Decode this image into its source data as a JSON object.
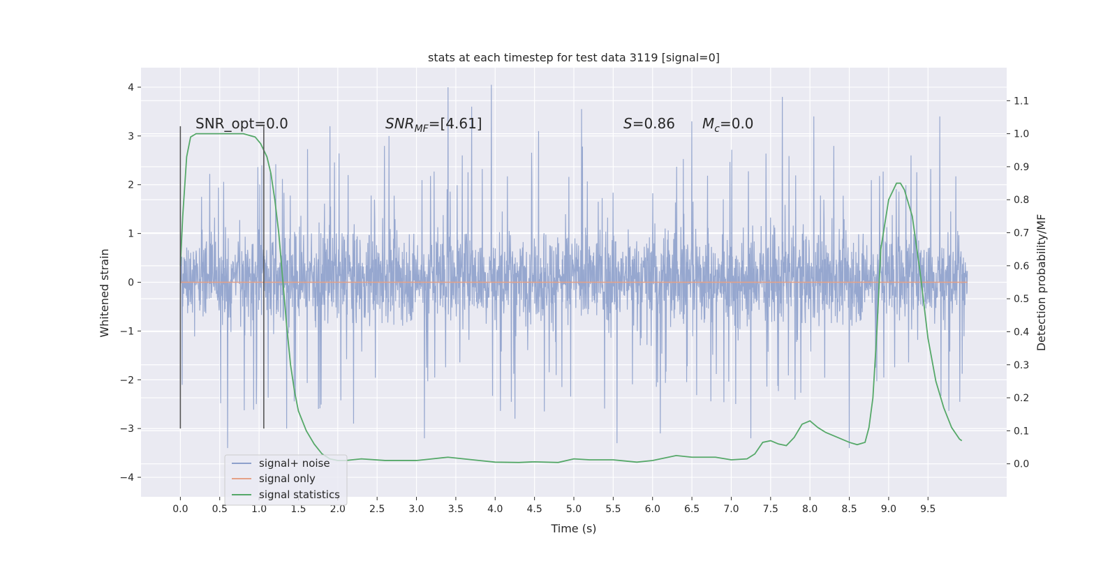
{
  "chart_data": {
    "type": "line",
    "title": "stats at each timestep for test data 3119 [signal=0]",
    "xlabel": "Time (s)",
    "ylabel_left": "Whitened strain",
    "ylabel_right": "Detection probability/MF",
    "xlim": [
      -0.5,
      10.5
    ],
    "ylim_left": [
      -4.4,
      4.4
    ],
    "ylim_right": [
      -0.1,
      1.2
    ],
    "x_ticks": [
      0.0,
      0.5,
      1.0,
      1.5,
      2.0,
      2.5,
      3.0,
      3.5,
      4.0,
      4.5,
      5.0,
      5.5,
      6.0,
      6.5,
      7.0,
      7.5,
      8.0,
      8.5,
      9.0,
      9.5
    ],
    "x_tick_labels": [
      "0.0",
      "0.5",
      "1.0",
      "1.5",
      "2.0",
      "2.5",
      "3.0",
      "3.5",
      "4.0",
      "4.5",
      "5.0",
      "5.5",
      "6.0",
      "6.5",
      "7.0",
      "7.5",
      "8.0",
      "8.5",
      "9.0",
      "9.5"
    ],
    "y_left_ticks": [
      4,
      3,
      2,
      1,
      0,
      -1,
      -2,
      -3,
      -4
    ],
    "y_left_tick_labels": [
      "4",
      "3",
      "2",
      "1",
      "0",
      "−1",
      "−2",
      "−3",
      "−4"
    ],
    "y_right_ticks": [
      1.1,
      1.0,
      0.9,
      0.8,
      0.7,
      0.6,
      0.5,
      0.4,
      0.3,
      0.2,
      0.1,
      0.0
    ],
    "y_right_tick_labels": [
      "1.1",
      "1.0",
      "0.9",
      "0.8",
      "0.7",
      "0.6",
      "0.5",
      "0.4",
      "0.3",
      "0.2",
      "0.1",
      "0.0"
    ],
    "grid": true,
    "legend_position": "lower-left",
    "series": [
      {
        "name": "signal+ noise",
        "axis": "left",
        "color": "#8da0cb",
        "x_range": [
          0.0,
          10.0
        ],
        "typical_band": [
          -1.1,
          1.3
        ],
        "spikes": [
          {
            "x": 3.4,
            "y": 4.0
          },
          {
            "x": 3.95,
            "y": 4.05
          },
          {
            "x": 7.65,
            "y": 3.8
          },
          {
            "x": 3.7,
            "y": 3.6
          },
          {
            "x": 5.1,
            "y": 3.55
          },
          {
            "x": 5.55,
            "y": 3.5
          },
          {
            "x": 1.9,
            "y": 3.2
          },
          {
            "x": 2.65,
            "y": 3.0
          },
          {
            "x": 4.55,
            "y": 3.1
          },
          {
            "x": 6.5,
            "y": 3.3
          },
          {
            "x": 8.05,
            "y": 3.4
          },
          {
            "x": 9.65,
            "y": 3.4
          },
          {
            "x": 5.55,
            "y": -3.3
          },
          {
            "x": 8.5,
            "y": -3.4
          },
          {
            "x": 0.6,
            "y": -3.4
          },
          {
            "x": 3.1,
            "y": -3.2
          },
          {
            "x": 7.25,
            "y": -3.2
          },
          {
            "x": 1.35,
            "y": -3.0
          },
          {
            "x": 6.1,
            "y": -3.1
          },
          {
            "x": 2.2,
            "y": -2.9
          },
          {
            "x": 4.25,
            "y": -2.8
          }
        ]
      },
      {
        "name": "signal only",
        "axis": "left",
        "color": "#e5a187",
        "x": [
          0.0,
          10.0
        ],
        "y": [
          0.0,
          0.0
        ]
      },
      {
        "name": "signal statistics",
        "axis": "right",
        "color": "#55a868",
        "x": [
          0.0,
          0.03,
          0.08,
          0.13,
          0.2,
          0.3,
          0.5,
          0.8,
          0.95,
          1.02,
          1.1,
          1.15,
          1.2,
          1.25,
          1.3,
          1.35,
          1.4,
          1.45,
          1.5,
          1.6,
          1.7,
          1.8,
          1.9,
          2.0,
          2.1,
          2.3,
          2.6,
          3.0,
          3.2,
          3.4,
          3.6,
          3.8,
          4.0,
          4.3,
          4.5,
          4.8,
          5.0,
          5.2,
          5.5,
          5.8,
          6.0,
          6.3,
          6.5,
          6.8,
          7.0,
          7.2,
          7.3,
          7.4,
          7.5,
          7.6,
          7.7,
          7.8,
          7.9,
          8.0,
          8.1,
          8.2,
          8.3,
          8.5,
          8.6,
          8.7,
          8.75,
          8.8,
          8.85,
          8.9,
          9.0,
          9.1,
          9.15,
          9.2,
          9.3,
          9.4,
          9.5,
          9.6,
          9.7,
          9.8,
          9.9,
          9.93
        ],
        "y": [
          0.6,
          0.75,
          0.93,
          0.99,
          1.0,
          1.0,
          1.0,
          1.0,
          0.99,
          0.97,
          0.93,
          0.88,
          0.8,
          0.7,
          0.56,
          0.42,
          0.3,
          0.22,
          0.16,
          0.1,
          0.06,
          0.03,
          0.015,
          0.01,
          0.01,
          0.015,
          0.01,
          0.01,
          0.015,
          0.02,
          0.015,
          0.01,
          0.005,
          0.004,
          0.006,
          0.004,
          0.015,
          0.012,
          0.012,
          0.005,
          0.01,
          0.025,
          0.02,
          0.02,
          0.012,
          0.015,
          0.03,
          0.065,
          0.07,
          0.06,
          0.055,
          0.08,
          0.12,
          0.13,
          0.11,
          0.095,
          0.085,
          0.065,
          0.058,
          0.065,
          0.11,
          0.2,
          0.4,
          0.65,
          0.8,
          0.85,
          0.85,
          0.83,
          0.75,
          0.58,
          0.38,
          0.25,
          0.17,
          0.11,
          0.075,
          0.07
        ]
      }
    ],
    "vertical_lines": [
      {
        "x": 0.0,
        "y_from": -3.0,
        "y_to": 3.2
      },
      {
        "x": 1.06,
        "y_from": -3.0,
        "y_to": 3.2
      }
    ],
    "annotations": {
      "snr_opt": "SNR_opt=0.0",
      "snr_mf": "SNR_MF=[4.61]",
      "s": "S=0.86",
      "mc": "M_c=0.0"
    },
    "colors": {
      "background": "#eaeaf2",
      "grid": "#ffffff",
      "vline": "#555555"
    }
  }
}
